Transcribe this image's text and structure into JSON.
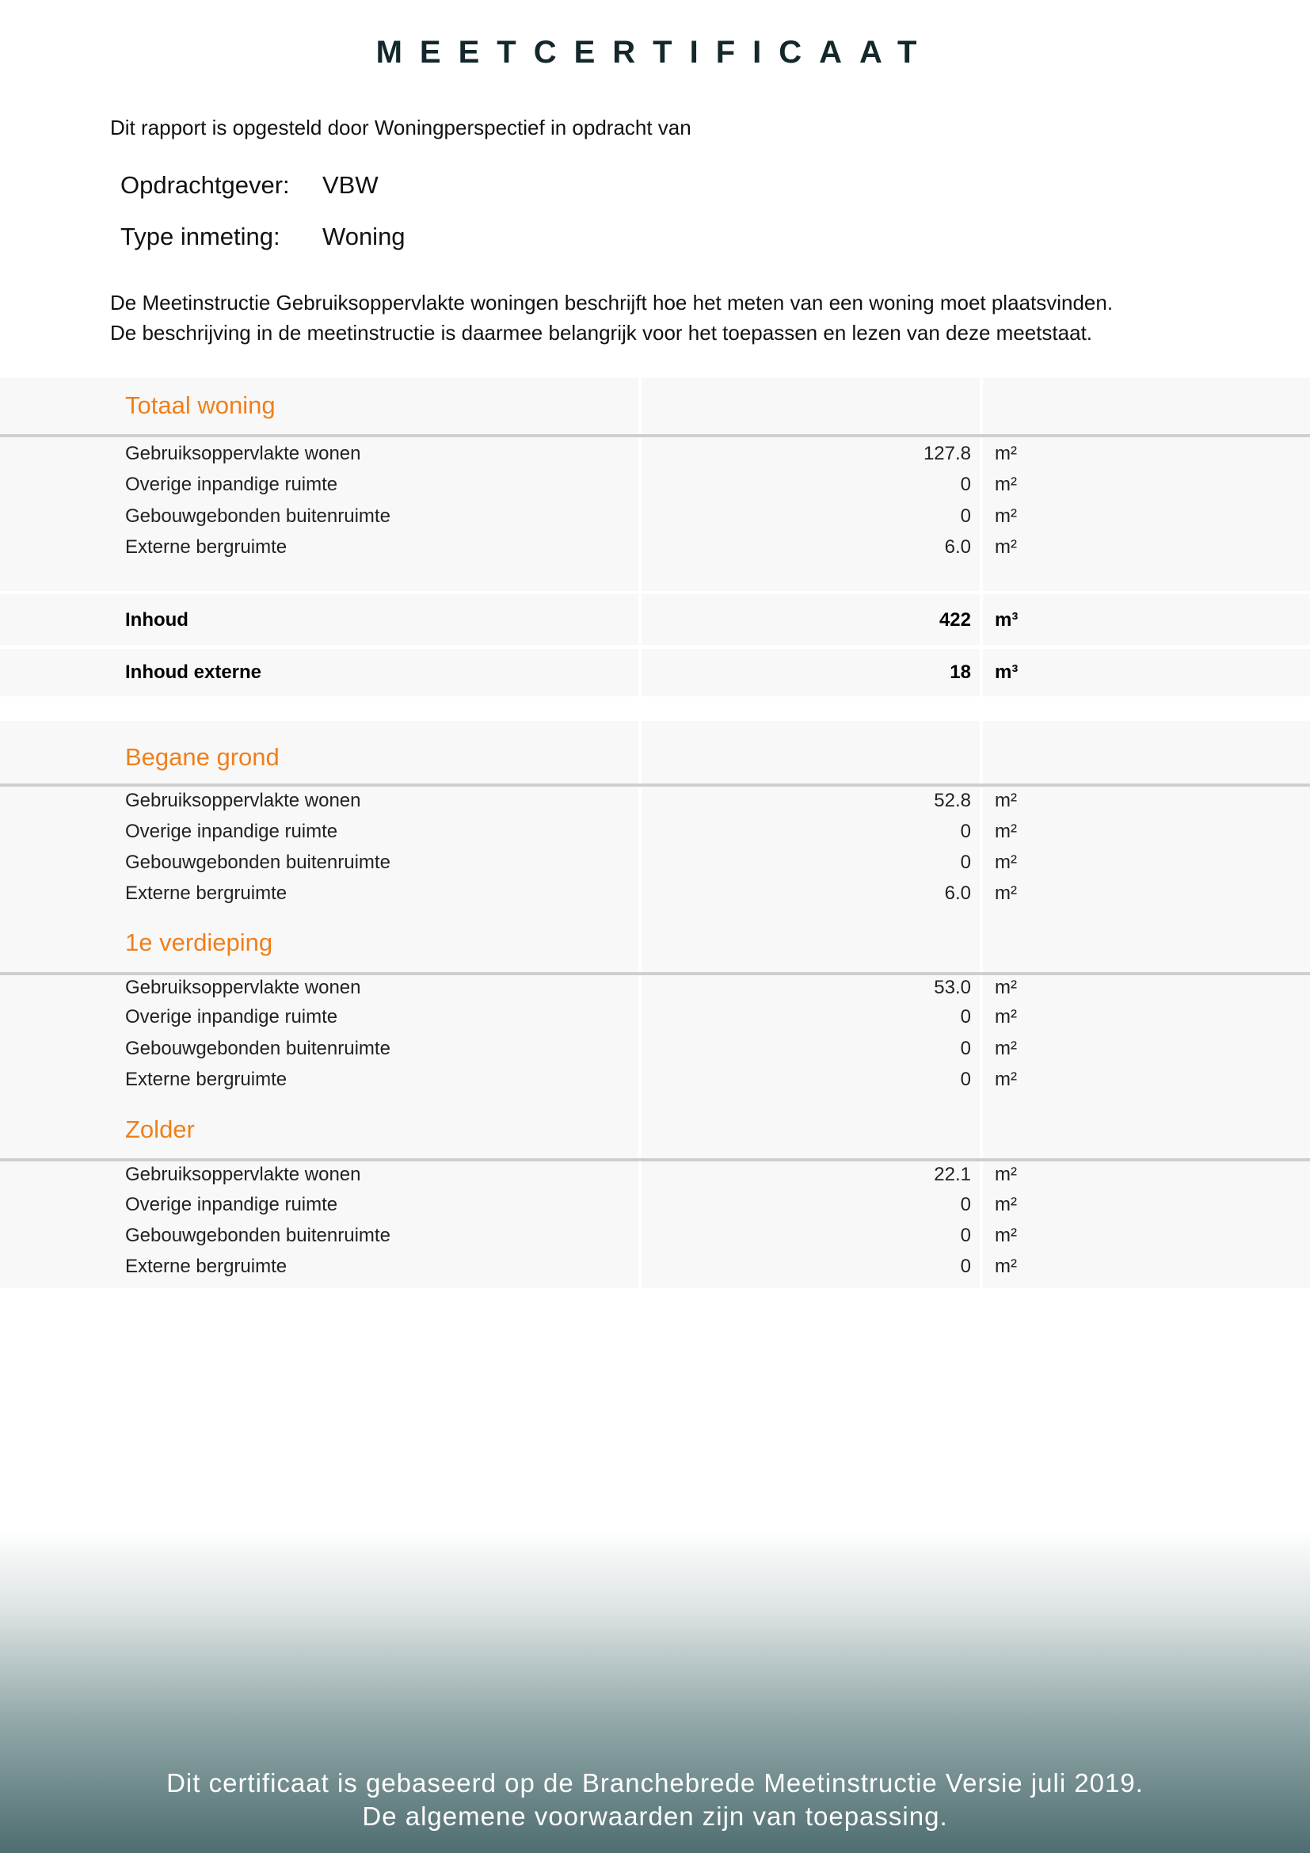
{
  "title": "MEETCERTIFICAAT",
  "intro": "Dit rapport is opgesteld door Woningperspectief in opdracht van",
  "client": {
    "label": "Opdrachtgever:",
    "value": "VBW"
  },
  "type": {
    "label": "Type inmeting:",
    "value": "Woning"
  },
  "paragraph": [
    "De Meetinstructie Gebruiksoppervlakte woningen beschrijft hoe het meten van een woning moet plaatsvinden.",
    "De beschrijving in de meetinstructie is daarmee belangrijk voor het toepassen en lezen van deze meetstaat."
  ],
  "colors": {
    "accent": "#f07f1a",
    "title": "#14282c",
    "footer": "#4f6d70"
  },
  "total": {
    "title": "Totaal woning",
    "rows": [
      {
        "label": "Gebruiksoppervlakte wonen",
        "value": "127.8",
        "unit": "m²"
      },
      {
        "label": "Overige inpandige ruimte",
        "value": "0",
        "unit": "m²"
      },
      {
        "label": "Gebouwgebonden buitenruimte",
        "value": "0",
        "unit": "m²"
      },
      {
        "label": "Externe bergruimte",
        "value": "6.0",
        "unit": "m²"
      }
    ],
    "inhoud": {
      "label": "Inhoud",
      "value": "422",
      "unit": "m³"
    },
    "inhoud_externe": {
      "label": "Inhoud externe",
      "value": "18",
      "unit": "m³"
    }
  },
  "floors": [
    {
      "title": "Begane grond",
      "rows": [
        {
          "label": "Gebruiksoppervlakte wonen",
          "value": "52.8",
          "unit": "m²"
        },
        {
          "label": "Overige inpandige ruimte",
          "value": "0",
          "unit": "m²"
        },
        {
          "label": "Gebouwgebonden buitenruimte",
          "value": "0",
          "unit": "m²"
        },
        {
          "label": "Externe bergruimte",
          "value": "6.0",
          "unit": "m²"
        }
      ]
    },
    {
      "title": "1e verdieping",
      "rows": [
        {
          "label": "Gebruiksoppervlakte wonen",
          "value": "53.0",
          "unit": "m²"
        },
        {
          "label": "Overige inpandige ruimte",
          "value": "0",
          "unit": "m²"
        },
        {
          "label": "Gebouwgebonden buitenruimte",
          "value": "0",
          "unit": "m²"
        },
        {
          "label": "Externe bergruimte",
          "value": "0",
          "unit": "m²"
        }
      ]
    },
    {
      "title": "Zolder",
      "rows": [
        {
          "label": "Gebruiksoppervlakte wonen",
          "value": "22.1",
          "unit": "m²"
        },
        {
          "label": "Overige inpandige ruimte",
          "value": "0",
          "unit": "m²"
        },
        {
          "label": "Gebouwgebonden buitenruimte",
          "value": "0",
          "unit": "m²"
        },
        {
          "label": "Externe bergruimte",
          "value": "0",
          "unit": "m²"
        }
      ]
    }
  ],
  "footer": [
    "Dit certificaat is gebaseerd op de Branchebrede Meetinstructie Versie juli 2019.",
    "De algemene voorwaarden zijn van toepassing."
  ]
}
